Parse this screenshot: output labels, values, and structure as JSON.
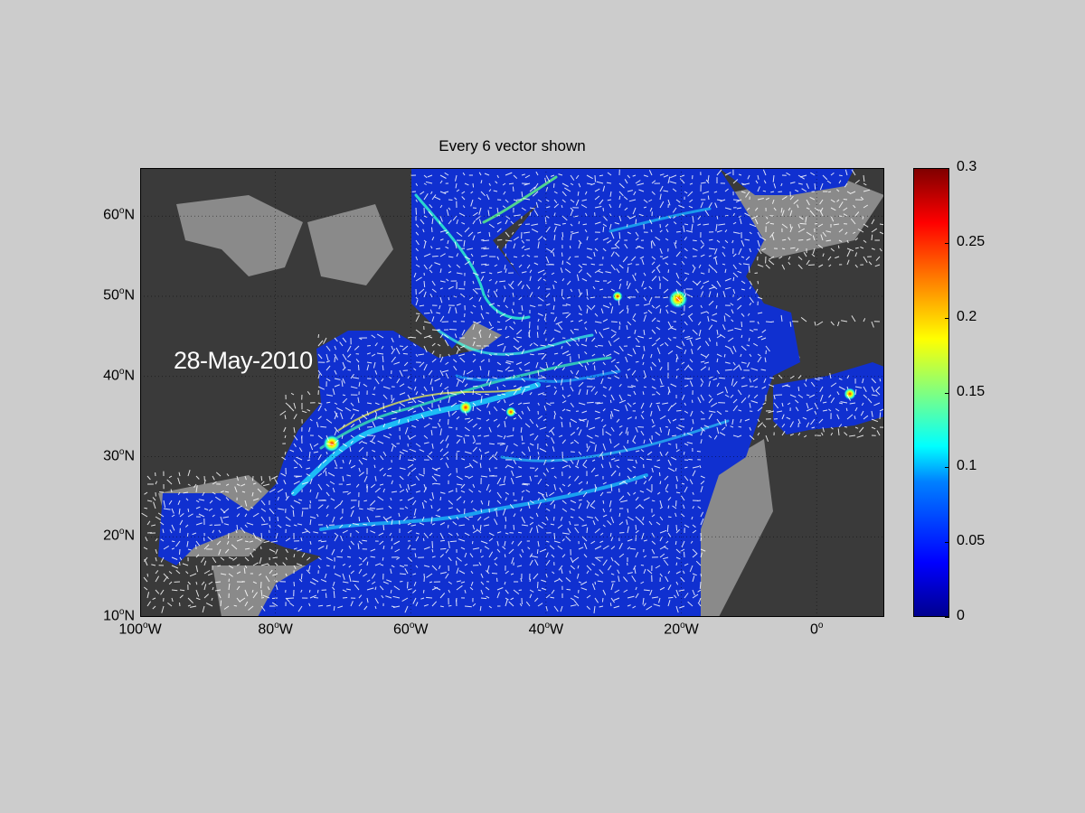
{
  "title": "Every 6 vector shown",
  "date_label": "28-May-2010",
  "map": {
    "lon_range": [
      -100,
      10
    ],
    "lat_range": [
      10,
      66
    ],
    "lon_ticks": [
      {
        "value": -100,
        "num": "100",
        "hem": "W"
      },
      {
        "value": -80,
        "num": "80",
        "hem": "W"
      },
      {
        "value": -60,
        "num": "60",
        "hem": "W"
      },
      {
        "value": -40,
        "num": "40",
        "hem": "W"
      },
      {
        "value": -20,
        "num": "20",
        "hem": "W"
      },
      {
        "value": 0,
        "num": "0",
        "hem": ""
      }
    ],
    "lat_ticks": [
      {
        "value": 10,
        "num": "10",
        "hem": "N"
      },
      {
        "value": 20,
        "num": "20",
        "hem": "N"
      },
      {
        "value": 30,
        "num": "30",
        "hem": "N"
      },
      {
        "value": 40,
        "num": "40",
        "hem": "N"
      },
      {
        "value": 50,
        "num": "50",
        "hem": "N"
      },
      {
        "value": 60,
        "num": "60",
        "hem": "N"
      }
    ],
    "degree_symbol": "o",
    "grid": "dotted",
    "colors": {
      "land": "#3a3a3a",
      "shelf": "#8a8a8a",
      "ocean_base": "#1030d0",
      "vectors": "#ffffff"
    }
  },
  "colorbar": {
    "colormap": "jet",
    "min": 0,
    "max": 0.3,
    "ticks": [
      "0",
      "0.05",
      "0.1",
      "0.15",
      "0.2",
      "0.25",
      "0.3"
    ],
    "tick_values": [
      0,
      0.05,
      0.1,
      0.15,
      0.2,
      0.25,
      0.3
    ]
  }
}
